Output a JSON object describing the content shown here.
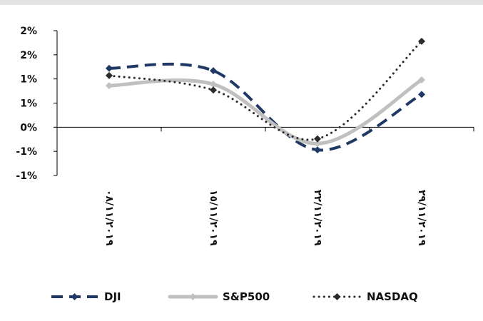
{
  "chart_data": {
    "type": "line",
    "categories": [
      "٠٨/١١/٢٠١٩",
      "١٥/١١/٢٠١٩",
      "٢٢/١١/٢٠١٩",
      "٢٩/١١/٢٠١٩"
    ],
    "y_tick_labels": [
      "2%",
      "2%",
      "1%",
      "1%",
      "0%",
      "-1%",
      "-1%"
    ],
    "y_tick_values": [
      2.0,
      1.5,
      1.0,
      0.5,
      0.0,
      -0.5,
      -1.0
    ],
    "ylim": [
      -1.0,
      2.0
    ],
    "series": [
      {
        "name": "DJI",
        "values": [
          1.22,
          1.17,
          -0.47,
          0.68
        ],
        "color": "#1f3864",
        "style": "dashed",
        "marker": "diamond"
      },
      {
        "name": "S&P500",
        "values": [
          0.86,
          0.89,
          -0.34,
          0.98
        ],
        "color": "#c0c0c0",
        "style": "solid",
        "marker": "diamond"
      },
      {
        "name": "NASDAQ",
        "values": [
          1.07,
          0.77,
          -0.24,
          1.78
        ],
        "color": "#2b2b2b",
        "style": "dotted",
        "marker": "diamond"
      }
    ],
    "grid": false,
    "legend_position": "bottom",
    "title": "",
    "xlabel": "",
    "ylabel": ""
  }
}
